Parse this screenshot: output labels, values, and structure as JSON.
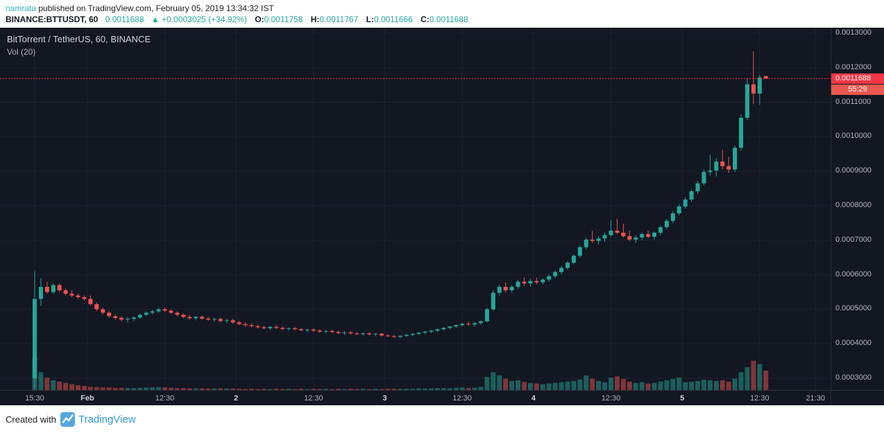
{
  "colors": {
    "bg_chart": "#131722",
    "grid": "#1e222d",
    "up": "#26a69a",
    "down": "#ef5350",
    "axis_text": "#b2b5be",
    "axis_text_major": "#d1d4dc",
    "axis_line": "#2a2e39",
    "price_line": "#f23645",
    "countdown_bg": "#e8584f",
    "badge_text": "#ffffff",
    "header_text": "#1c1c1c",
    "username": "#2bb3c4",
    "value_green": "#26a69a",
    "legend_text": "#d1d4dc",
    "legend_sub": "#b2b5be",
    "brand_blue": "#2d9bd6",
    "logo_bg": "#56a7e0"
  },
  "header": {
    "user": "namrata",
    "published_suffix": " published on TradingView.com, February 05, 2019 13:34:32 IST",
    "symbol": "BINANCE:BTTUSDT, 60",
    "last_price": "0.0011688",
    "change_arrow": "▲",
    "change": "+0.0003025 (+34.92%)",
    "ohlc": {
      "o_label": "O:",
      "o": "0.0011758",
      "h_label": "H:",
      "h": "0.0011767",
      "l_label": "L:",
      "l": "0.0011666",
      "c_label": "C:",
      "c": "0.0011688"
    }
  },
  "chart": {
    "legend_title": "BitTorrent / TetherUS, 60, BINANCE",
    "legend_vol": "Vol (20)",
    "price_badge": "0.0011688",
    "countdown": "55:29"
  },
  "footer": {
    "created_with": "Created with",
    "brand": "TradingView"
  },
  "chart_data": {
    "type": "candlestick",
    "title": "BitTorrent / TetherUS, 60, BINANCE",
    "interval": "60",
    "exchange": "BINANCE",
    "current_price": 0.0011688,
    "y_axis": {
      "min": 0.0003,
      "max": 0.0013,
      "ticks": [
        0.0013,
        0.0012,
        0.0011,
        0.001,
        0.0009,
        0.0008,
        0.0007,
        0.0006,
        0.0005,
        0.0004,
        0.0003
      ]
    },
    "x_axis": {
      "start": "Jan 31 15:30",
      "interval_hours": 1,
      "labels": [
        {
          "text": "15:30",
          "i": 0,
          "major": false
        },
        {
          "text": "Feb",
          "i": 8.5,
          "major": true
        },
        {
          "text": "12:30",
          "i": 21,
          "major": false
        },
        {
          "text": "2",
          "i": 32.5,
          "major": true
        },
        {
          "text": "12:30",
          "i": 45,
          "major": false
        },
        {
          "text": "3",
          "i": 56.5,
          "major": true
        },
        {
          "text": "12:30",
          "i": 69,
          "major": false
        },
        {
          "text": "4",
          "i": 80.5,
          "major": true
        },
        {
          "text": "12:30",
          "i": 93,
          "major": false
        },
        {
          "text": "5",
          "i": 104.5,
          "major": true
        },
        {
          "text": "12:30",
          "i": 117,
          "major": false
        },
        {
          "text": "21:30",
          "i": 126,
          "major": false
        }
      ]
    },
    "volume_unit": "relative_0_100",
    "columns": [
      "open",
      "high",
      "low",
      "close",
      "volume_rel"
    ],
    "candles": [
      [
        0.0003,
        0.00061,
        0.00027,
        0.00053,
        100
      ],
      [
        0.00053,
        0.00059,
        0.00051,
        0.000565,
        55
      ],
      [
        0.000565,
        0.00058,
        0.000545,
        0.00055,
        38
      ],
      [
        0.00055,
        0.000575,
        0.000545,
        0.00057,
        30
      ],
      [
        0.00057,
        0.000575,
        0.00055,
        0.000555,
        26
      ],
      [
        0.000555,
        0.00056,
        0.00054,
        0.000545,
        22
      ],
      [
        0.000545,
        0.000555,
        0.000535,
        0.00054,
        18
      ],
      [
        0.00054,
        0.000545,
        0.00053,
        0.000535,
        15
      ],
      [
        0.000535,
        0.00054,
        0.000525,
        0.00053,
        13
      ],
      [
        0.00053,
        0.00054,
        0.00051,
        0.000515,
        10
      ],
      [
        0.000515,
        0.00052,
        0.000495,
        0.0005,
        9
      ],
      [
        0.0005,
        0.000505,
        0.000485,
        0.00049,
        8
      ],
      [
        0.00049,
        0.000495,
        0.000475,
        0.00048,
        8
      ],
      [
        0.00048,
        0.000485,
        0.00047,
        0.000475,
        7
      ],
      [
        0.000475,
        0.00048,
        0.000465,
        0.00047,
        7
      ],
      [
        0.00047,
        0.000478,
        0.000462,
        0.000472,
        6
      ],
      [
        0.000472,
        0.00048,
        0.000466,
        0.000476,
        6
      ],
      [
        0.000476,
        0.000488,
        0.000472,
        0.000484,
        7
      ],
      [
        0.000484,
        0.000494,
        0.00048,
        0.00049,
        8
      ],
      [
        0.00049,
        0.000498,
        0.000485,
        0.000494,
        8
      ],
      [
        0.000494,
        0.000504,
        0.00049,
        0.0005,
        9
      ],
      [
        0.0005,
        0.000506,
        0.000492,
        0.000496,
        8
      ],
      [
        0.000496,
        0.0005,
        0.000486,
        0.00049,
        7
      ],
      [
        0.00049,
        0.000494,
        0.00048,
        0.000484,
        6
      ],
      [
        0.000484,
        0.000488,
        0.000474,
        0.000478,
        6
      ],
      [
        0.000478,
        0.000484,
        0.00047,
        0.000474,
        5
      ],
      [
        0.000474,
        0.00048,
        0.000468,
        0.000478,
        5
      ],
      [
        0.000478,
        0.000482,
        0.00047,
        0.000473,
        5
      ],
      [
        0.000473,
        0.000478,
        0.000466,
        0.00047,
        5
      ],
      [
        0.00047,
        0.000476,
        0.000464,
        0.000472,
        5
      ],
      [
        0.000472,
        0.000476,
        0.000462,
        0.000466,
        5
      ],
      [
        0.000466,
        0.000472,
        0.00046,
        0.000468,
        5
      ],
      [
        0.000468,
        0.000472,
        0.000458,
        0.000462,
        5
      ],
      [
        0.000462,
        0.000466,
        0.000454,
        0.000457,
        4
      ],
      [
        0.000457,
        0.000462,
        0.00045,
        0.000454,
        3
      ],
      [
        0.000454,
        0.000459,
        0.000448,
        0.000451,
        4
      ],
      [
        0.000451,
        0.000456,
        0.000444,
        0.000448,
        3
      ],
      [
        0.000448,
        0.000453,
        0.000442,
        0.000445,
        4
      ],
      [
        0.000445,
        0.000451,
        0.00044,
        0.000449,
        3
      ],
      [
        0.000449,
        0.000453,
        0.000443,
        0.000446,
        4
      ],
      [
        0.000446,
        0.00045,
        0.00044,
        0.000443,
        3
      ],
      [
        0.000443,
        0.000448,
        0.000438,
        0.000445,
        4
      ],
      [
        0.000445,
        0.000449,
        0.000439,
        0.000442,
        3
      ],
      [
        0.000442,
        0.000446,
        0.000436,
        0.000439,
        4
      ],
      [
        0.000439,
        0.000444,
        0.000434,
        0.000441,
        3
      ],
      [
        0.000441,
        0.000445,
        0.000435,
        0.000438,
        4
      ],
      [
        0.000438,
        0.000442,
        0.000432,
        0.000435,
        3
      ],
      [
        0.000435,
        0.00044,
        0.00043,
        0.000437,
        4
      ],
      [
        0.000437,
        0.000441,
        0.000431,
        0.000434,
        3
      ],
      [
        0.000434,
        0.000438,
        0.000428,
        0.000431,
        4
      ],
      [
        0.000431,
        0.000436,
        0.000426,
        0.000433,
        3
      ],
      [
        0.000433,
        0.000437,
        0.000427,
        0.00043,
        4
      ],
      [
        0.00043,
        0.000434,
        0.000425,
        0.000428,
        3
      ],
      [
        0.000428,
        0.000433,
        0.000423,
        0.00043,
        4
      ],
      [
        0.00043,
        0.000434,
        0.000424,
        0.000427,
        3
      ],
      [
        0.000427,
        0.000431,
        0.000422,
        0.000429,
        4
      ],
      [
        0.000429,
        0.000432,
        0.000421,
        0.000424,
        3
      ],
      [
        0.000424,
        0.000428,
        0.000419,
        0.000422,
        4
      ],
      [
        0.000422,
        0.000426,
        0.000417,
        0.00042,
        4
      ],
      [
        0.00042,
        0.000425,
        0.000416,
        0.000423,
        4
      ],
      [
        0.000423,
        0.000428,
        0.000419,
        0.000426,
        4
      ],
      [
        0.000426,
        0.000431,
        0.000422,
        0.000429,
        4
      ],
      [
        0.000429,
        0.000434,
        0.000425,
        0.000432,
        5
      ],
      [
        0.000432,
        0.000437,
        0.000428,
        0.000435,
        5
      ],
      [
        0.000435,
        0.00044,
        0.000431,
        0.000438,
        5
      ],
      [
        0.000438,
        0.000444,
        0.000434,
        0.000442,
        6
      ],
      [
        0.000442,
        0.000448,
        0.000438,
        0.000446,
        6
      ],
      [
        0.000446,
        0.000452,
        0.000442,
        0.00045,
        6
      ],
      [
        0.00045,
        0.000456,
        0.000446,
        0.000454,
        7
      ],
      [
        0.000454,
        0.00046,
        0.00045,
        0.000458,
        8
      ],
      [
        0.000458,
        0.000464,
        0.000452,
        0.000456,
        6
      ],
      [
        0.000456,
        0.000462,
        0.00045,
        0.00046,
        7
      ],
      [
        0.00046,
        0.000468,
        0.000456,
        0.000465,
        10
      ],
      [
        0.000465,
        0.000505,
        0.000462,
        0.0005,
        40
      ],
      [
        0.0005,
        0.000555,
        0.000495,
        0.000548,
        55
      ],
      [
        0.000548,
        0.000572,
        0.00054,
        0.000565,
        45
      ],
      [
        0.000565,
        0.000578,
        0.000548,
        0.000555,
        35
      ],
      [
        0.000555,
        0.00057,
        0.000548,
        0.000565,
        28
      ],
      [
        0.000565,
        0.000585,
        0.00056,
        0.00058,
        30
      ],
      [
        0.00058,
        0.000592,
        0.000568,
        0.000575,
        25
      ],
      [
        0.000575,
        0.000588,
        0.000565,
        0.000582,
        22
      ],
      [
        0.000582,
        0.000592,
        0.000572,
        0.000578,
        20
      ],
      [
        0.000578,
        0.00059,
        0.000572,
        0.000586,
        18
      ],
      [
        0.000586,
        0.0006,
        0.00058,
        0.000596,
        20
      ],
      [
        0.000596,
        0.000612,
        0.00059,
        0.000608,
        22
      ],
      [
        0.000608,
        0.000625,
        0.000602,
        0.00062,
        24
      ],
      [
        0.00062,
        0.00064,
        0.000615,
        0.000635,
        26
      ],
      [
        0.000635,
        0.00066,
        0.00063,
        0.000655,
        28
      ],
      [
        0.000655,
        0.000685,
        0.00065,
        0.00068,
        32
      ],
      [
        0.00068,
        0.000708,
        0.000675,
        0.000702,
        45
      ],
      [
        0.000702,
        0.000728,
        0.000692,
        0.000698,
        35
      ],
      [
        0.000698,
        0.000712,
        0.000688,
        0.000705,
        28
      ],
      [
        0.000705,
        0.000722,
        0.000695,
        0.000715,
        24
      ],
      [
        0.000715,
        0.000758,
        0.00071,
        0.000728,
        38
      ],
      [
        0.000728,
        0.000762,
        0.000718,
        0.000722,
        42
      ],
      [
        0.000722,
        0.000748,
        0.000708,
        0.000712,
        34
      ],
      [
        0.000712,
        0.000728,
        0.000698,
        0.000702,
        26
      ],
      [
        0.000702,
        0.000715,
        0.000692,
        0.000708,
        22
      ],
      [
        0.000708,
        0.000722,
        0.0007,
        0.000718,
        24
      ],
      [
        0.000718,
        0.000728,
        0.000705,
        0.00071,
        20
      ],
      [
        0.00071,
        0.000725,
        0.000702,
        0.000722,
        22
      ],
      [
        0.000722,
        0.000742,
        0.000715,
        0.000738,
        26
      ],
      [
        0.000738,
        0.000762,
        0.000732,
        0.000756,
        30
      ],
      [
        0.000756,
        0.000785,
        0.00075,
        0.000778,
        34
      ],
      [
        0.000778,
        0.000805,
        0.000772,
        0.000798,
        38
      ],
      [
        0.000798,
        0.000825,
        0.000792,
        0.000818,
        24
      ],
      [
        0.000818,
        0.000848,
        0.000812,
        0.000842,
        26
      ],
      [
        0.000842,
        0.000872,
        0.000835,
        0.000865,
        28
      ],
      [
        0.000865,
        0.000905,
        0.00086,
        0.000898,
        32
      ],
      [
        0.000898,
        0.000948,
        0.000888,
        0.000902,
        30
      ],
      [
        0.000902,
        0.000938,
        0.000885,
        0.000928,
        28
      ],
      [
        0.000928,
        0.000962,
        0.000905,
        0.000915,
        30
      ],
      [
        0.000915,
        0.000942,
        0.000895,
        0.000905,
        26
      ],
      [
        0.000905,
        0.000975,
        0.000898,
        0.000968,
        35
      ],
      [
        0.000968,
        0.001065,
        0.00096,
        0.001055,
        55
      ],
      [
        0.001055,
        0.00117,
        0.001048,
        0.001152,
        70
      ],
      [
        0.001152,
        0.001248,
        0.001095,
        0.001125,
        90
      ],
      [
        0.001125,
        0.00118,
        0.001092,
        0.001172,
        80
      ],
      [
        0.0011758,
        0.0011767,
        0.0011666,
        0.0011688,
        60
      ]
    ]
  }
}
